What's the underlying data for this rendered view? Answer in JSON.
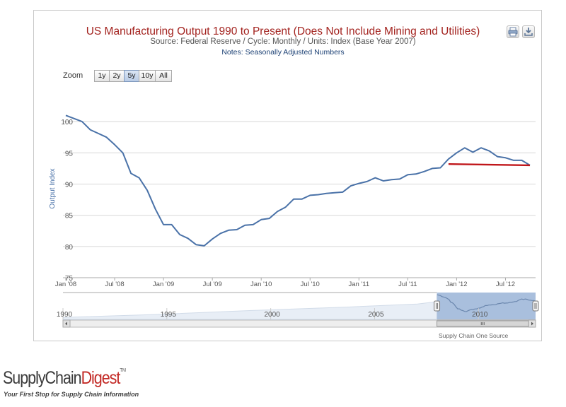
{
  "header": {
    "title": "US Manufacturing Output 1990 to Present (Does Not Include Mining and Utilities)",
    "subtitle": "Source: Federal Reserve / Cycle: Monthly / Units: Index (Base Year 2007)",
    "notes": "Notes: Seasonally Adjusted Numbers"
  },
  "toolbar": {
    "print_icon": "printer-icon",
    "export_icon": "download-icon"
  },
  "zoom": {
    "label": "Zoom",
    "buttons": [
      "1y",
      "2y",
      "5y",
      "10y",
      "All"
    ],
    "active": "5y"
  },
  "credit": "Supply Chain One Source",
  "logo": {
    "part1": "SupplyChain",
    "part2": "Digest",
    "tm": "TM",
    "tagline": "Your First Stop for Supply Chain Information"
  },
  "colors": {
    "title": "#a3231f",
    "line": "#4a72a8",
    "trend": "#c0161a",
    "navigator_fill": "#c5d4e8",
    "navigator_selected": "#a9bfdd"
  },
  "chart_data": {
    "type": "line",
    "ylabel": "Output Index",
    "yticks": [
      75,
      80,
      85,
      90,
      95,
      100
    ],
    "ylim": [
      75,
      102.5
    ],
    "xlim": [
      "2008-01",
      "2012-10"
    ],
    "xticks": [
      {
        "label": "Jan '08",
        "x": "2008-01"
      },
      {
        "label": "Jul '08",
        "x": "2008-07"
      },
      {
        "label": "Jan '09",
        "x": "2009-01"
      },
      {
        "label": "Jul '09",
        "x": "2009-07"
      },
      {
        "label": "Jan '10",
        "x": "2010-01"
      },
      {
        "label": "Jul '10",
        "x": "2010-07"
      },
      {
        "label": "Jan '11",
        "x": "2011-01"
      },
      {
        "label": "Jul '11",
        "x": "2011-07"
      },
      {
        "label": "Jan '12",
        "x": "2012-01"
      },
      {
        "label": "Jul '12",
        "x": "2012-07"
      }
    ],
    "series": [
      {
        "x": [
          "2008-01",
          "2008-02",
          "2008-03",
          "2008-04",
          "2008-05",
          "2008-06",
          "2008-07",
          "2008-08",
          "2008-09",
          "2008-10",
          "2008-11",
          "2008-12",
          "2009-01",
          "2009-02",
          "2009-03",
          "2009-04",
          "2009-05",
          "2009-06",
          "2009-07",
          "2009-08",
          "2009-09",
          "2009-10",
          "2009-11",
          "2009-12",
          "2010-01",
          "2010-02",
          "2010-03",
          "2010-04",
          "2010-05",
          "2010-06",
          "2010-07",
          "2010-08",
          "2010-09",
          "2010-10",
          "2010-11",
          "2010-12",
          "2011-01",
          "2011-02",
          "2011-03",
          "2011-04",
          "2011-05",
          "2011-06",
          "2011-07",
          "2011-08",
          "2011-09",
          "2011-10",
          "2011-11",
          "2011-12",
          "2012-01",
          "2012-02",
          "2012-03",
          "2012-04",
          "2012-05",
          "2012-06",
          "2012-07",
          "2012-08",
          "2012-09",
          "2012-10"
        ],
        "values": [
          101.0,
          100.5,
          100.0,
          98.7,
          98.1,
          97.5,
          96.3,
          95.0,
          91.7,
          91.0,
          89.0,
          86.0,
          83.5,
          83.5,
          81.9,
          81.3,
          80.3,
          80.1,
          81.2,
          82.1,
          82.6,
          82.7,
          83.4,
          83.5,
          84.3,
          84.5,
          85.6,
          86.3,
          87.6,
          87.6,
          88.2,
          88.3,
          88.5,
          88.6,
          88.7,
          89.7,
          90.1,
          90.4,
          91.0,
          90.5,
          90.7,
          90.8,
          91.5,
          91.6,
          92.0,
          92.5,
          92.6,
          94.0,
          95.0,
          95.8,
          95.1,
          95.8,
          95.3,
          94.4,
          94.2,
          93.8,
          93.8,
          93.0
        ]
      }
    ],
    "trend_line": {
      "x": [
        "2011-12",
        "2012-10"
      ],
      "values": [
        93.2,
        93.0
      ]
    },
    "navigator": {
      "years": [
        "1990",
        "1995",
        "2000",
        "2005",
        "2010"
      ],
      "range": [
        "1990-01",
        "2012-10"
      ],
      "selection": [
        "2008-01",
        "2012-10"
      ],
      "scroll_thumb_icon": "grip-icon"
    }
  }
}
